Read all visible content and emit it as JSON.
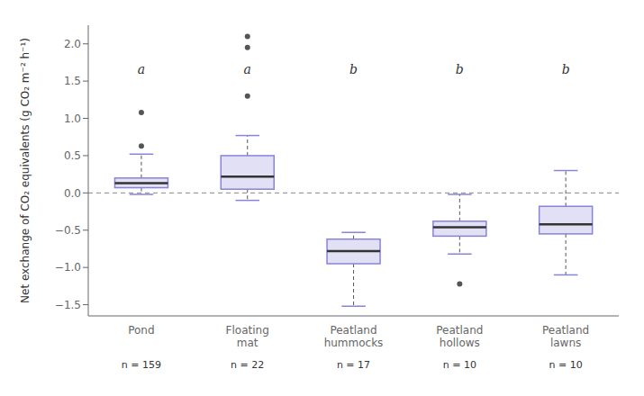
{
  "chart_data": {
    "type": "box",
    "categories": [
      "Pond",
      "Floating\nmat",
      "Peatland\nhummocks",
      "Peatland\nhollows",
      "Peatland\nlawns"
    ],
    "n_labels": [
      "n = 159",
      "n = 22",
      "n = 17",
      "n = 10",
      "n = 10"
    ],
    "annotations": [
      {
        "text": "a",
        "x": "Pond",
        "y": 1.6
      },
      {
        "text": "a",
        "x": "Floating\nmat",
        "y": 1.6
      },
      {
        "text": "b",
        "x": "Peatland\nhummocks",
        "y": 1.6
      },
      {
        "text": "b",
        "x": "Peatland\nhollows",
        "y": 1.6
      },
      {
        "text": "b",
        "x": "Peatland\nlawns",
        "y": 1.6
      }
    ],
    "boxes": [
      {
        "q1": 0.07,
        "median": 0.13,
        "q3": 0.2,
        "whisker_low": -0.02,
        "whisker_high": 0.52,
        "fliers": [
          0.63,
          1.08
        ]
      },
      {
        "q1": 0.05,
        "median": 0.22,
        "q3": 0.5,
        "whisker_low": -0.1,
        "whisker_high": 0.77,
        "fliers": [
          1.3,
          1.95,
          2.1
        ]
      },
      {
        "q1": -0.95,
        "median": -0.78,
        "q3": -0.62,
        "whisker_low": -1.52,
        "whisker_high": -0.53,
        "fliers": []
      },
      {
        "q1": -0.58,
        "median": -0.46,
        "q3": -0.38,
        "whisker_low": -0.82,
        "whisker_high": -0.02,
        "fliers": [
          -1.22
        ]
      },
      {
        "q1": -0.55,
        "median": -0.42,
        "q3": -0.18,
        "whisker_low": -1.1,
        "whisker_high": 0.3,
        "fliers": []
      }
    ],
    "hline": 0.0,
    "ylabel": "Net exchange of CO₂ equivalents (g CO₂ m⁻² h⁻¹)",
    "ylim": [
      -1.65,
      2.25
    ],
    "yticks": [
      {
        "value": -1.5,
        "label": "−1.5"
      },
      {
        "value": -1.0,
        "label": "−1.0"
      },
      {
        "value": -0.5,
        "label": "−0.5"
      },
      {
        "value": 0.0,
        "label": "0.0"
      },
      {
        "value": 0.5,
        "label": "0.5"
      },
      {
        "value": 1.0,
        "label": "1.0"
      },
      {
        "value": 1.5,
        "label": "1.5"
      },
      {
        "value": 2.0,
        "label": "2.0"
      }
    ]
  }
}
